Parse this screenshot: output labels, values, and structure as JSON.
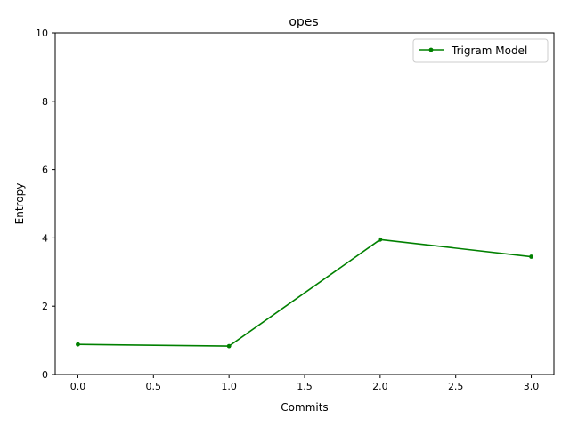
{
  "chart_data": {
    "type": "line",
    "title": "opes",
    "xlabel": "Commits",
    "ylabel": "Entropy",
    "xlim": [
      -0.15,
      3.15
    ],
    "ylim": [
      0,
      10
    ],
    "x_ticks": [
      0.0,
      0.5,
      1.0,
      1.5,
      2.0,
      2.5,
      3.0
    ],
    "x_tick_labels": [
      "0.0",
      "0.5",
      "1.0",
      "1.5",
      "2.0",
      "2.5",
      "3.0"
    ],
    "y_ticks": [
      0,
      2,
      4,
      6,
      8,
      10
    ],
    "y_tick_labels": [
      "0",
      "2",
      "4",
      "6",
      "8",
      "10"
    ],
    "grid": false,
    "legend_position": "top-right",
    "series": [
      {
        "name": "Trigram Model",
        "color": "#008000",
        "marker": "point",
        "x": [
          0,
          1,
          2,
          3
        ],
        "y": [
          0.88,
          0.83,
          3.95,
          3.45
        ]
      }
    ]
  }
}
